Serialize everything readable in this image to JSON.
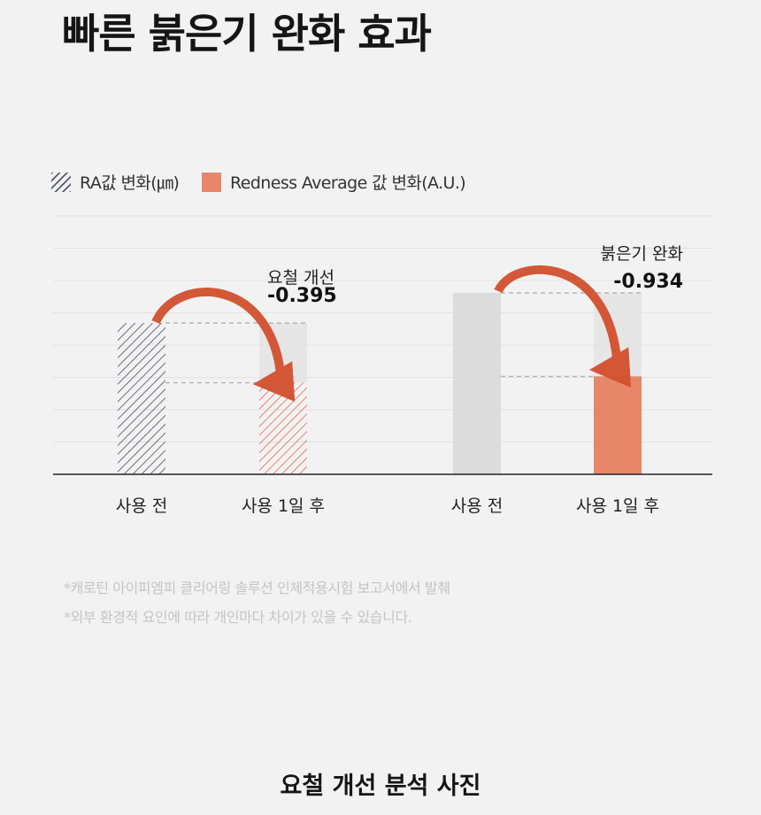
{
  "headline": "빠른 붉은기 완화 효과",
  "legend": {
    "ra_label": "RA값 변화(㎛)",
    "redness_label": "Redness Average 값 변화(A.U.)"
  },
  "colors": {
    "accent": "#e8866a",
    "arrow": "#d2502e",
    "hatch_before": "#4a4a66",
    "hatch_after": "#e06a50",
    "gray_bar": "#dcdcdc"
  },
  "chart_data": [
    {
      "type": "bar",
      "name": "RA값 변화(㎛)",
      "categories": [
        "사용 전",
        "사용 1일 후"
      ],
      "values": [
        1.0,
        0.605
      ],
      "style": "hatched",
      "annotation": {
        "label": "요철 개선",
        "value": "-0.395"
      }
    },
    {
      "type": "bar",
      "name": "Redness Average 값 변화(A.U.)",
      "categories": [
        "사용 전",
        "사용 1일 후"
      ],
      "values": [
        1.0,
        0.54
      ],
      "style": "solid",
      "annotation": {
        "label": "붉은기 완화",
        "value": "-0.934"
      }
    }
  ],
  "footnotes": [
    "*캐로틴 아이피엠피 클리어링 솔루션 인체적용시험 보고서에서 발췌",
    "*외부 환경적 요인에 따라 개인마다 차이가 있을 수 있습니다."
  ],
  "section_title": "요철 개선 분석 사진"
}
